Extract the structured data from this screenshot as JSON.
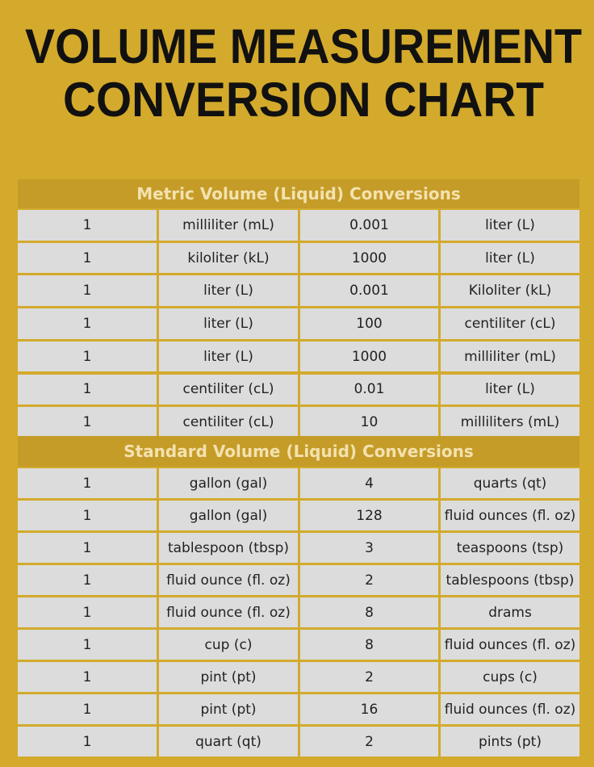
{
  "header": {
    "title_lines": [
      "VOLUME MEASUREMENT",
      "CONVERSION CHART"
    ]
  },
  "sections": [
    {
      "title": "Metric Volume (Liquid) Conversions",
      "rows": [
        [
          "1",
          "milliliter (mL)",
          "0.001",
          "liter (L)"
        ],
        [
          "1",
          "kiloliter (kL)",
          "1000",
          "liter (L)"
        ],
        [
          "1",
          "liter (L)",
          "0.001",
          "Kiloliter (kL)"
        ],
        [
          "1",
          "liter (L)",
          "100",
          "centiliter (cL)"
        ],
        [
          "1",
          "liter (L)",
          "1000",
          "milliliter (mL)"
        ],
        [
          "1",
          "centiliter (cL)",
          "0.01",
          "liter (L)"
        ],
        [
          "1",
          "centiliter (cL)",
          "10",
          "milliliters (mL)"
        ]
      ]
    },
    {
      "title": "Standard Volume (Liquid) Conversions",
      "rows": [
        [
          "1",
          "gallon (gal)",
          "4",
          "quarts (qt)"
        ],
        [
          "1",
          "gallon (gal)",
          "128",
          "fluid ounces (fl. oz)"
        ],
        [
          "1",
          "tablespoon (tbsp)",
          "3",
          "teaspoons (tsp)"
        ],
        [
          "1",
          "fluid ounce (fl. oz)",
          "2",
          "tablespoons (tbsp)"
        ],
        [
          "1",
          "fluid ounce (fl. oz)",
          "8",
          "drams"
        ],
        [
          "1",
          "cup (c)",
          "8",
          "fluid ounces (fl. oz)"
        ],
        [
          "1",
          "pint (pt)",
          "2",
          "cups (c)"
        ],
        [
          "1",
          "pint (pt)",
          "16",
          "fluid ounces (fl. oz)"
        ],
        [
          "1",
          "quart (qt)",
          "2",
          "pints (pt)"
        ]
      ]
    }
  ]
}
